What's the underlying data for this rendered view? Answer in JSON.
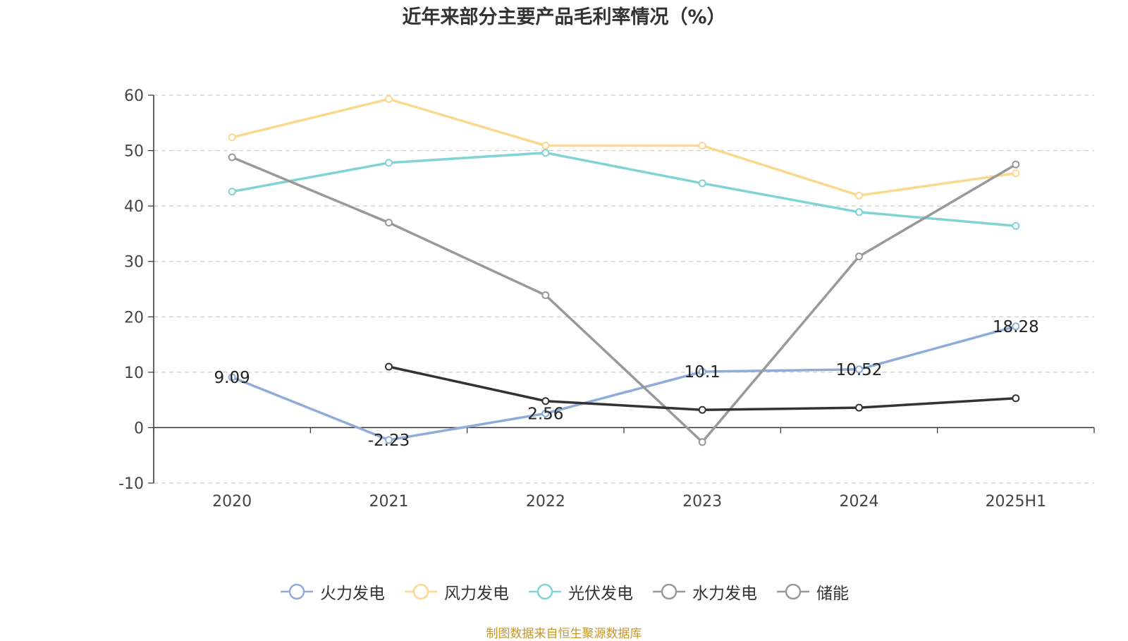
{
  "chart_data": {
    "type": "line",
    "title": "近年来部分主要产品毛利率情况（%）",
    "categories": [
      "2020",
      "2021",
      "2022",
      "2023",
      "2024",
      "2025H1"
    ],
    "ylim": [
      -10,
      60
    ],
    "yticks": [
      -10,
      0,
      10,
      20,
      30,
      40,
      50,
      60
    ],
    "grid": true,
    "legend_position": "bottom",
    "series": [
      {
        "name": "火力发电",
        "color": "#8eacd8",
        "values": [
          9.09,
          -2.23,
          2.56,
          10.1,
          10.52,
          18.28
        ],
        "labels": [
          "9.09",
          "-2.23",
          "2.56",
          "10.1",
          "10.52",
          "18.28"
        ]
      },
      {
        "name": "风力发电",
        "color": "#fad98f",
        "values": [
          52.4,
          59.3,
          50.9,
          50.9,
          41.9,
          45.9
        ]
      },
      {
        "name": "光伏发电",
        "color": "#82d3d5",
        "values": [
          42.6,
          47.8,
          49.6,
          44.1,
          38.9,
          36.4
        ]
      },
      {
        "name": "水力发电",
        "color": "#999999",
        "values": [
          48.8,
          37.0,
          23.9,
          -2.6,
          30.9,
          47.5
        ]
      },
      {
        "name": "储能",
        "color": "#333333",
        "legend_color": "#999999",
        "values": [
          null,
          11.0,
          4.8,
          3.2,
          3.6,
          5.3
        ]
      }
    ]
  },
  "source_text": "制图数据来自恒生聚源数据库"
}
